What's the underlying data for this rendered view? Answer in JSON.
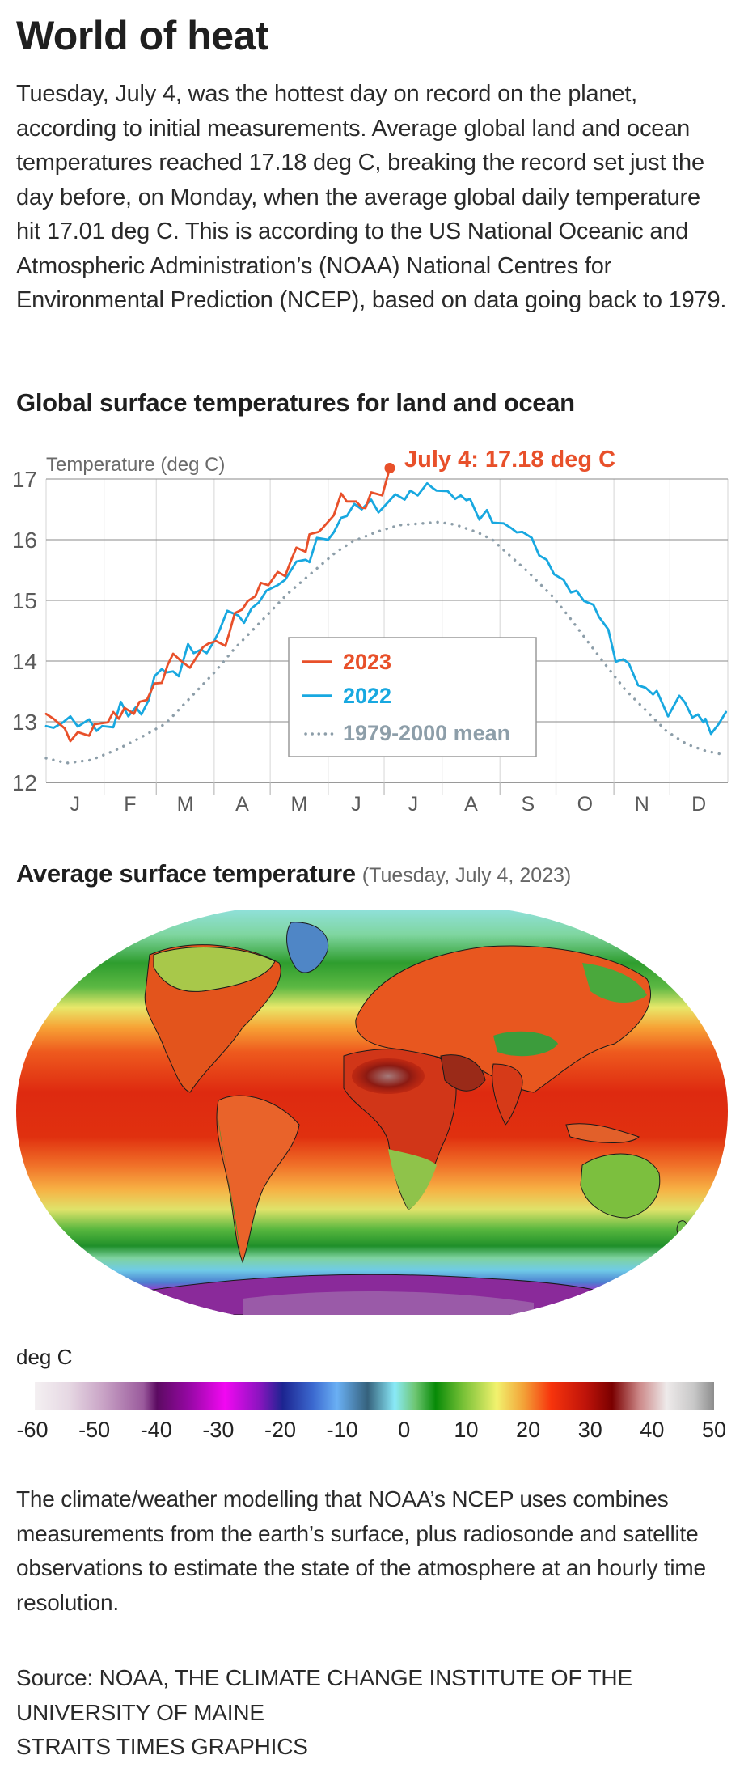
{
  "header": {
    "title": "World of heat",
    "intro": "Tuesday, July 4, was the hottest day on record on the planet, according to initial measurements. Average global land and ocean temperatures reached 17.18 deg C, breaking the record set just the day before, on Monday, when the average global daily temperature hit 17.01 deg C. This is according to the US National Oceanic and Atmospheric Administration’s (NOAA) National Centres for Environmental Prediction (NCEP), based on data going back to 1979."
  },
  "colors": {
    "series_2023": "#e8502a",
    "series_2022": "#18a8e0",
    "mean": "#8d9ea9",
    "grid": "#8a8a8a",
    "grid_minor": "#dddddd",
    "axis_text": "#5a5a5a"
  },
  "chart_data": {
    "type": "line",
    "title": "Global surface temperatures for land and ocean",
    "ylabel": "Temperature (deg C)",
    "xlabel": "",
    "ylim": [
      12,
      17
    ],
    "yticks": [
      12,
      13,
      14,
      15,
      16,
      17
    ],
    "xlim_days": [
      0,
      365
    ],
    "x_unit": "day of year (0 = Jan 1)",
    "month_labels": [
      "J",
      "F",
      "M",
      "A",
      "M",
      "J",
      "J",
      "A",
      "S",
      "O",
      "N",
      "D"
    ],
    "month_starts": [
      0,
      31,
      59,
      90,
      120,
      151,
      181,
      212,
      243,
      273,
      304,
      334,
      365
    ],
    "grid": true,
    "legend": {
      "position": "center",
      "entries": [
        {
          "label": "2023",
          "style": "solid",
          "series": "2023"
        },
        {
          "label": "2022",
          "style": "solid",
          "series": "2022"
        },
        {
          "label": "1979-2000 mean",
          "style": "dotted",
          "series": "mean"
        }
      ]
    },
    "annotation": {
      "text": "July 4: 17.18 deg C",
      "day": 184,
      "value": 17.18
    },
    "series": [
      {
        "name": "2023",
        "x": [
          0,
          4,
          10,
          13,
          17,
          23,
          26,
          33,
          36,
          39,
          42,
          47,
          50,
          54,
          58,
          62,
          65,
          68,
          72,
          77,
          84,
          87,
          91,
          96,
          98,
          101,
          105,
          108,
          112,
          115,
          119,
          124,
          128,
          131,
          134,
          139,
          141,
          146,
          148,
          154,
          158,
          161,
          166,
          169,
          171,
          174,
          180,
          184
        ],
        "y": [
          13.13,
          13.05,
          12.89,
          12.68,
          12.83,
          12.77,
          12.96,
          12.99,
          13.16,
          13.05,
          13.23,
          13.13,
          13.33,
          13.36,
          13.63,
          13.64,
          13.93,
          14.12,
          14.01,
          13.89,
          14.23,
          14.29,
          14.33,
          14.25,
          14.45,
          14.79,
          14.85,
          14.99,
          15.07,
          15.29,
          15.25,
          15.47,
          15.4,
          15.65,
          15.87,
          15.8,
          16.09,
          16.13,
          16.19,
          16.4,
          16.76,
          16.63,
          16.63,
          16.53,
          16.52,
          16.78,
          16.73,
          17.18
        ]
      },
      {
        "name": "2022",
        "x": [
          0,
          4,
          9,
          13,
          17,
          23,
          27,
          30,
          36,
          40,
          44,
          48,
          51,
          55,
          58,
          62,
          64,
          68,
          71,
          76,
          79,
          83,
          86,
          90,
          93,
          97,
          103,
          106,
          110,
          114,
          118,
          124,
          128,
          134,
          139,
          141,
          145,
          151,
          154,
          158,
          161,
          165,
          169,
          174,
          178,
          182,
          187,
          192,
          195,
          199,
          204,
          207,
          209,
          215,
          219,
          222,
          225,
          227,
          232,
          236,
          239,
          245,
          249,
          252,
          255,
          260,
          264,
          268,
          272,
          277,
          281,
          284,
          288,
          293,
          296,
          301,
          305,
          309,
          312,
          317,
          321,
          325,
          327,
          333,
          339,
          342,
          346,
          349,
          352,
          353,
          356,
          360,
          364
        ],
        "y": [
          12.93,
          12.9,
          12.99,
          13.09,
          12.92,
          13.04,
          12.85,
          12.93,
          12.91,
          13.33,
          13.09,
          13.24,
          13.12,
          13.36,
          13.75,
          13.87,
          13.81,
          13.83,
          13.75,
          14.28,
          14.13,
          14.19,
          14.13,
          14.33,
          14.52,
          14.83,
          14.75,
          14.63,
          14.87,
          14.97,
          15.16,
          15.25,
          15.34,
          15.64,
          15.67,
          15.63,
          16.03,
          16.0,
          16.12,
          16.36,
          16.39,
          16.59,
          16.5,
          16.66,
          16.45,
          16.58,
          16.75,
          16.66,
          16.81,
          16.73,
          16.93,
          16.85,
          16.81,
          16.8,
          16.67,
          16.73,
          16.65,
          16.67,
          16.33,
          16.49,
          16.28,
          16.27,
          16.19,
          16.12,
          16.13,
          16.03,
          15.74,
          15.67,
          15.43,
          15.34,
          15.13,
          15.16,
          14.99,
          14.93,
          14.73,
          14.52,
          13.99,
          14.03,
          13.96,
          13.6,
          13.56,
          13.45,
          13.51,
          13.09,
          13.43,
          13.32,
          13.07,
          13.12,
          12.99,
          13.05,
          12.8,
          12.96,
          13.16
        ]
      },
      {
        "name": "1979-2000 mean",
        "x": [
          0,
          11,
          24,
          37,
          50,
          64,
          77,
          90,
          101,
          115,
          129,
          144,
          155,
          164,
          177,
          189,
          202,
          210,
          219,
          231,
          239,
          245,
          258,
          271,
          280,
          290,
          300,
          310,
          322,
          332,
          343,
          353,
          364
        ],
        "y": [
          12.4,
          12.32,
          12.37,
          12.53,
          12.73,
          12.97,
          13.39,
          13.81,
          14.21,
          14.65,
          15.1,
          15.5,
          15.79,
          15.97,
          16.13,
          16.24,
          16.27,
          16.29,
          16.25,
          16.12,
          16.0,
          15.83,
          15.47,
          15.07,
          14.73,
          14.32,
          13.92,
          13.53,
          13.16,
          12.85,
          12.63,
          12.52,
          12.45
        ]
      }
    ]
  },
  "map": {
    "title": "Average surface temperature",
    "subtitle": "(Tuesday, July 4, 2023)",
    "colorbar_unit": "deg C",
    "colorbar_ticks": [
      "-60",
      "-50",
      "-40",
      "-30",
      "-20",
      "-10",
      "0",
      "10",
      "20",
      "30",
      "40",
      "50"
    ],
    "colorbar_range": [
      -60,
      50
    ]
  },
  "footer": {
    "note": "The climate/weather modelling that NOAA’s NCEP uses combines measurements from the earth’s surface, plus radiosonde and satellite observations to estimate the state of the atmosphere at an hourly time resolution.",
    "source": "Source: NOAA, THE CLIMATE CHANGE INSTITUTE OF THE UNIVERSITY OF MAINE",
    "credit": "STRAITS TIMES GRAPHICS"
  }
}
